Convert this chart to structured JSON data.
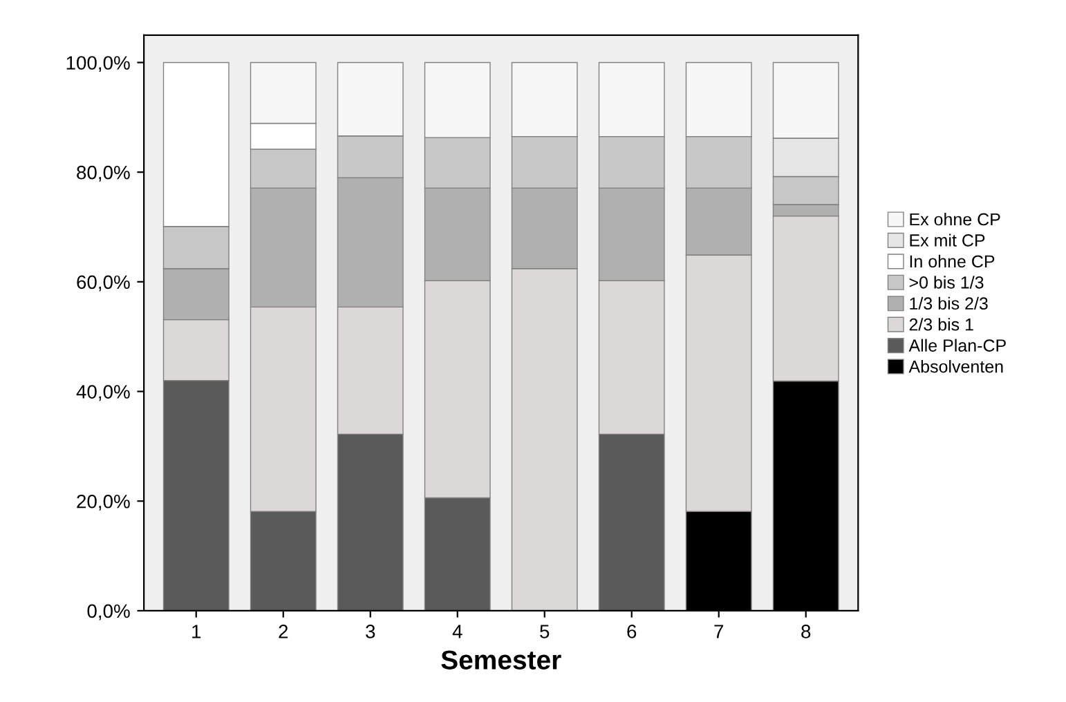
{
  "chart_data": {
    "type": "bar",
    "stacked": true,
    "xlabel": "Semester",
    "categories": [
      "1",
      "2",
      "3",
      "4",
      "5",
      "6",
      "7",
      "8"
    ],
    "series": [
      {
        "name": "Absolventen",
        "color": "#000000",
        "values": [
          0,
          0,
          0,
          0,
          0,
          0,
          18.1,
          41.9
        ]
      },
      {
        "name": "Alle Plan-CP",
        "color": "#5a5a5a",
        "values": [
          42.0,
          18.1,
          32.2,
          20.6,
          0,
          32.2,
          0,
          0
        ]
      },
      {
        "name": "2/3 bis 1",
        "color": "#dcd8d8",
        "values": [
          11.1,
          37.3,
          23.2,
          39.6,
          62.4,
          28.0,
          46.8,
          30.1
        ]
      },
      {
        "name": "1/3 bis 2/3",
        "color": "#b0b0b0",
        "values": [
          9.3,
          21.7,
          23.6,
          16.9,
          14.7,
          16.9,
          12.2,
          2.1
        ]
      },
      {
        "name": ">0 bis 1/3",
        "color": "#c8c8c8",
        "values": [
          7.7,
          7.1,
          7.6,
          9.2,
          9.4,
          9.4,
          9.4,
          5.1
        ]
      },
      {
        "name": "In ohne CP",
        "color": "#ffffff",
        "values": [
          29.9,
          4.7,
          0,
          0,
          0,
          0,
          0,
          0
        ]
      },
      {
        "name": "Ex mit CP",
        "color": "#e6e6e6",
        "values": [
          0,
          0,
          0,
          0,
          0,
          0,
          0,
          7.0
        ]
      },
      {
        "name": "Ex ohne CP",
        "color": "#f7f7f7",
        "values": [
          0,
          11.1,
          13.4,
          13.7,
          13.5,
          13.5,
          13.5,
          13.8
        ]
      }
    ],
    "ylim": [
      0,
      105
    ],
    "yticks": [
      {
        "value": 0,
        "label": "0,0%"
      },
      {
        "value": 20,
        "label": "20,0%"
      },
      {
        "value": 40,
        "label": "40,0%"
      },
      {
        "value": 60,
        "label": "60,0%"
      },
      {
        "value": 80,
        "label": "80,0%"
      },
      {
        "value": 100,
        "label": "100,0%"
      }
    ],
    "legend": "right",
    "grid": false
  }
}
